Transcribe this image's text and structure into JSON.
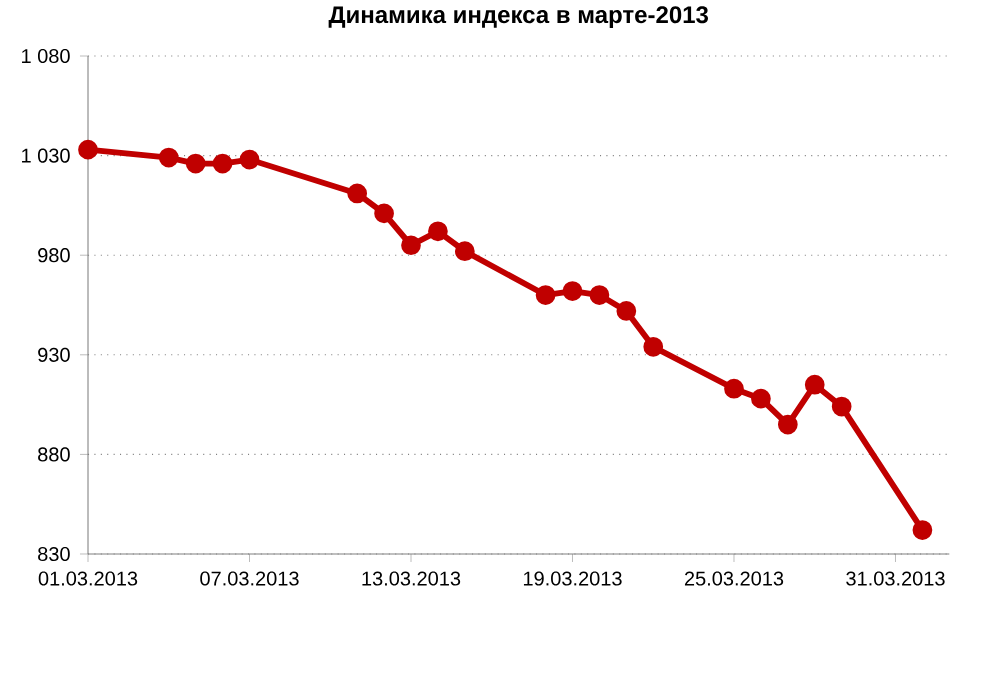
{
  "chart_data": {
    "type": "line",
    "title": "Динамика индекса в марте-2013",
    "x": [
      "2013-03-01",
      "2013-03-04",
      "2013-03-05",
      "2013-03-06",
      "2013-03-07",
      "2013-03-11",
      "2013-03-12",
      "2013-03-13",
      "2013-03-14",
      "2013-03-15",
      "2013-03-18",
      "2013-03-19",
      "2013-03-20",
      "2013-03-21",
      "2013-03-22",
      "2013-03-25",
      "2013-03-26",
      "2013-03-27",
      "2013-03-28",
      "2013-03-29",
      "2013-04-01"
    ],
    "series": [
      {
        "color": "#c00000",
        "values": [
          1033,
          1029,
          1026,
          1026,
          1028,
          1011,
          1001,
          985,
          992,
          982,
          960,
          962,
          960,
          952,
          934,
          913,
          908,
          895,
          915,
          904,
          842
        ]
      }
    ],
    "xlim": [
      "2013-03-01",
      "2013-04-02"
    ],
    "xticks": [
      {
        "value": "2013-03-01",
        "label": "01.03.2013"
      },
      {
        "value": "2013-03-07",
        "label": "07.03.2013"
      },
      {
        "value": "2013-03-13",
        "label": "13.03.2013"
      },
      {
        "value": "2013-03-19",
        "label": "19.03.2013"
      },
      {
        "value": "2013-03-25",
        "label": "25.03.2013"
      },
      {
        "value": "2013-03-31",
        "label": "31.03.2013"
      }
    ],
    "ylim": [
      830,
      1080
    ],
    "yticks": [
      830,
      880,
      930,
      980,
      {
        "value": 1030,
        "label": "1 030"
      },
      {
        "value": 1080,
        "label": "1 080"
      }
    ],
    "grid": "y",
    "marker": "circle",
    "line_style": "solid",
    "legend": false
  }
}
